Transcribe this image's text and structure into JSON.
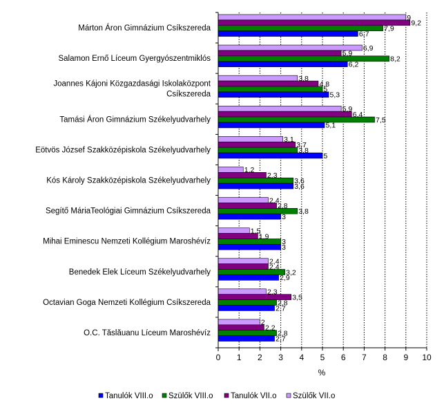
{
  "chart_data": {
    "type": "bar",
    "orientation": "horizontal",
    "title": "",
    "xlabel": "%",
    "ylabel": "",
    "xlim": [
      0,
      10
    ],
    "x_ticks": [
      "0",
      "1",
      "2",
      "3",
      "4",
      "5",
      "6",
      "7",
      "8",
      "9",
      "10"
    ],
    "grid": "vertical dotted",
    "legend_position": "bottom",
    "categories": [
      "Márton Áron Gimnázium Csíkszereda",
      "Salamon Ernő Líceum Gyergyószentmiklós",
      "Joannes Kájoni Közgazdasági Iskolaközpont Csíkszereda",
      "Tamási Áron Gimnázium Székelyudvarhely",
      "Eötvös József Szakközépiskola Székelyudvarhely",
      "Kós Károly Szakközépiskola Székelyudvarhely",
      "Segítő MáriaTeológiai Gimnázium Csíkszereda",
      "Mihai Eminescu Nemzeti Kollégium Maroshévíz",
      "Benedek Elek Líceum Székelyudvarhely",
      "Octavian Goga Nemzeti Kollégium Csíkszereda",
      "O.C. Tăslăuanu Líceum Maroshévíz"
    ],
    "category_lines": [
      [
        "Márton Áron Gimnázium Csíkszereda"
      ],
      [
        "Salamon Ernő Líceum Gyergyószentmiklós"
      ],
      [
        "Joannes Kájoni Közgazdasági Iskolaközpont",
        "Csíkszereda"
      ],
      [
        "Tamási Áron Gimnázium Székelyudvarhely"
      ],
      [
        "Eötvös József Szakközépiskola Székelyudvarhely"
      ],
      [
        "Kós Károly Szakközépiskola Székelyudvarhely"
      ],
      [
        "Segítő MáriaTeológiai Gimnázium Csíkszereda"
      ],
      [
        "Mihai Eminescu Nemzeti Kollégium Maroshévíz"
      ],
      [
        "Benedek Elek Líceum Székelyudvarhely"
      ],
      [
        "Octavian Goga Nemzeti Kollégium Csíkszereda"
      ],
      [
        "O.C. Tăslăuanu Líceum Maroshévíz"
      ]
    ],
    "series": [
      {
        "name": "Szülők VII.o",
        "color": "#CC99FF",
        "values": [
          9,
          6.9,
          3.8,
          5.9,
          3.1,
          1.2,
          2.4,
          1.5,
          2.4,
          2.3,
          2
        ],
        "labels": [
          "9",
          "6,9",
          "3,8",
          "5,9",
          "3,1",
          "1,2",
          "2,4",
          "1,5",
          "2,4",
          "2,3",
          "2"
        ]
      },
      {
        "name": "Tanulók VII.o",
        "color": "#800080",
        "values": [
          9.2,
          5.9,
          4.8,
          6.4,
          3.7,
          2.3,
          2.8,
          1.9,
          2.4,
          3.5,
          2.2
        ],
        "labels": [
          "9,2",
          "5,9",
          "4,8",
          "6,4",
          "3,7",
          "2,3",
          "2,8",
          "1,9",
          "2,4",
          "3,5",
          "2,2"
        ]
      },
      {
        "name": "Szülők VIII.o",
        "color": "#008000",
        "values": [
          7.9,
          8.2,
          5,
          7.5,
          3.8,
          3.6,
          3.8,
          3,
          3.2,
          2.8,
          2.8
        ],
        "labels": [
          "7,9",
          "8,2",
          "5",
          "7,5",
          "3,8",
          "3,6",
          "3,8",
          "3",
          "3,2",
          "2,8",
          "2,8"
        ]
      },
      {
        "name": "Tanulók VIII.o",
        "color": "#0000FF",
        "values": [
          6.7,
          6.2,
          5.3,
          5.1,
          5,
          3.6,
          3,
          3,
          2.9,
          2.7,
          2.7
        ],
        "labels": [
          "6,7",
          "6,2",
          "5,3",
          "5,1",
          "5",
          "3,6",
          "3",
          "3",
          "2,9",
          "2,7",
          "2,7"
        ]
      }
    ],
    "legend_order": [
      "Tanulók VIII.o",
      "Szülők VIII.o",
      "Tanulók VII.o",
      "Szülők VII.o"
    ]
  }
}
